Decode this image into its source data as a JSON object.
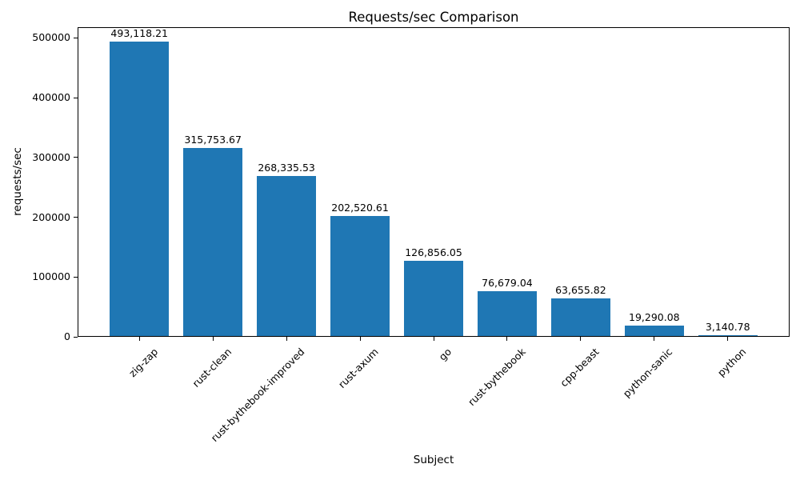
{
  "chart_data": {
    "type": "bar",
    "title": "Requests/sec Comparison",
    "xlabel": "Subject",
    "ylabel": "requests/sec",
    "categories": [
      "zig-zap",
      "rust-clean",
      "rust-bythebook-improved",
      "rust-axum",
      "go",
      "rust-bythebook",
      "cpp-beast",
      "python-sanic",
      "python"
    ],
    "values": [
      493118.21,
      315753.67,
      268335.53,
      202520.61,
      126856.05,
      76679.04,
      63655.82,
      19290.08,
      3140.78
    ],
    "value_labels": [
      "493,118.21",
      "315,753.67",
      "268,335.53",
      "202,520.61",
      "126,856.05",
      "76,679.04",
      "63,655.82",
      "19,290.08",
      "3,140.78"
    ],
    "yticks": [
      0,
      100000,
      200000,
      300000,
      400000,
      500000
    ],
    "ytick_labels": [
      "0",
      "100000",
      "200000",
      "300000",
      "400000",
      "500000"
    ],
    "ylim": [
      0,
      517774
    ],
    "bar_color": "#1f77b4",
    "background_color": "#ffffff",
    "grid": false,
    "legend": "none",
    "x_tick_rotation_deg": 45
  }
}
